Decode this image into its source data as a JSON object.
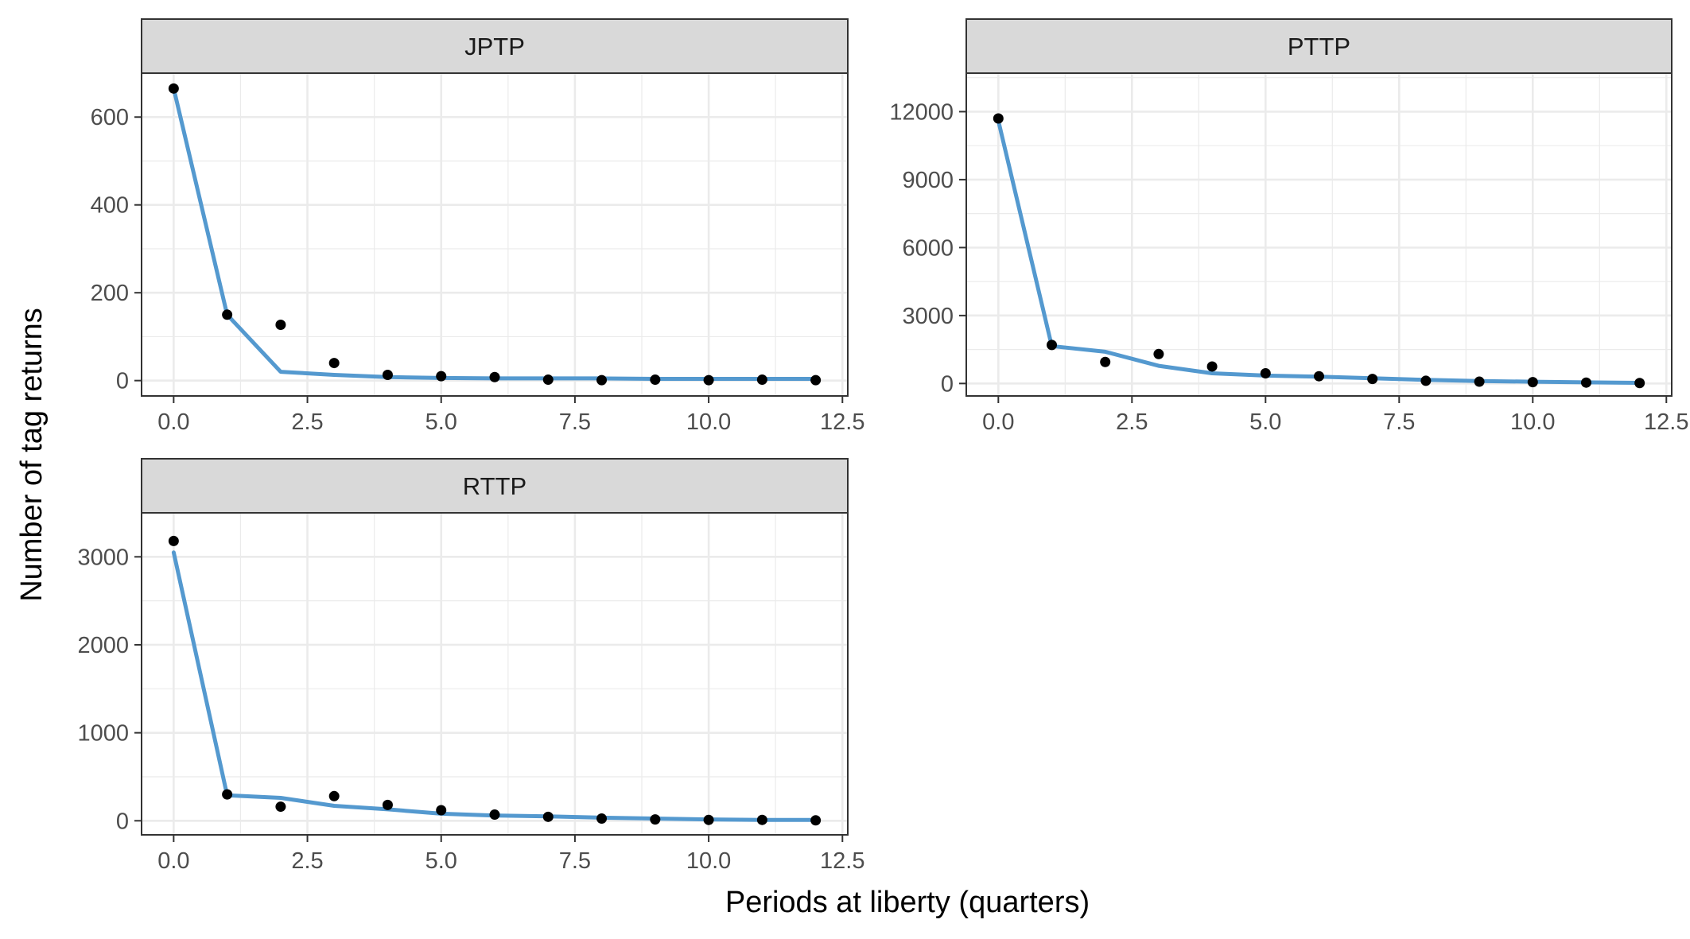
{
  "chart_data": {
    "type": "line",
    "xlabel": "Periods at liberty (quarters)",
    "ylabel": "Number of tag returns",
    "colors": {
      "fit_line": "#5499cf",
      "observed_points": "#000000",
      "strip_fill": "#d9d9d9",
      "grid": "#ebebeb"
    },
    "legend": "none",
    "grid": true,
    "panels": [
      {
        "name": "JPTP",
        "xlim": [
          -0.6,
          12.6
        ],
        "ylim": [
          -35,
          700
        ],
        "xticks": [
          0,
          2.5,
          5,
          7.5,
          10,
          12.5
        ],
        "xtick_labels": [
          "0.0",
          "2.5",
          "5.0",
          "7.5",
          "10.0",
          "12.5"
        ],
        "yticks": [
          0,
          200,
          400,
          600
        ],
        "ytick_labels": [
          "0",
          "200",
          "400",
          "600"
        ],
        "observed": {
          "x": [
            0,
            1,
            2,
            3,
            4,
            5,
            6,
            7,
            8,
            9,
            10,
            11,
            12
          ],
          "y": [
            665,
            150,
            127,
            40,
            13,
            10,
            8,
            2,
            1,
            2,
            1,
            2,
            1
          ]
        },
        "predicted": {
          "x": [
            0,
            1,
            2,
            3,
            4,
            5,
            6,
            7,
            8,
            9,
            10,
            11,
            12
          ],
          "y": [
            665,
            150,
            20,
            13,
            8,
            6,
            5,
            5,
            5,
            4,
            4,
            4,
            4
          ]
        }
      },
      {
        "name": "PTTP",
        "xlim": [
          -0.6,
          12.6
        ],
        "ylim": [
          -550,
          13700
        ],
        "xticks": [
          0,
          2.5,
          5,
          7.5,
          10,
          12.5
        ],
        "xtick_labels": [
          "0.0",
          "2.5",
          "5.0",
          "7.5",
          "10.0",
          "12.5"
        ],
        "yticks": [
          0,
          3000,
          6000,
          9000,
          12000
        ],
        "ytick_labels": [
          "0",
          "3000",
          "6000",
          "9000",
          "12000"
        ],
        "observed": {
          "x": [
            0,
            1,
            2,
            3,
            4,
            5,
            6,
            7,
            8,
            9,
            10,
            11,
            12
          ],
          "y": [
            11700,
            1700,
            950,
            1300,
            750,
            450,
            320,
            200,
            120,
            80,
            60,
            40,
            20
          ]
        },
        "predicted": {
          "x": [
            0,
            1,
            2,
            3,
            4,
            5,
            6,
            7,
            8,
            9,
            10,
            11,
            12
          ],
          "y": [
            11600,
            1650,
            1400,
            780,
            450,
            350,
            300,
            230,
            160,
            110,
            80,
            50,
            30
          ]
        }
      },
      {
        "name": "RTTP",
        "xlim": [
          -0.6,
          12.6
        ],
        "ylim": [
          -160,
          3500
        ],
        "xticks": [
          0,
          2.5,
          5,
          7.5,
          10,
          12.5
        ],
        "xtick_labels": [
          "0.0",
          "2.5",
          "5.0",
          "7.5",
          "10.0",
          "12.5"
        ],
        "yticks": [
          0,
          1000,
          2000,
          3000
        ],
        "ytick_labels": [
          "0",
          "1000",
          "2000",
          "3000"
        ],
        "observed": {
          "x": [
            0,
            1,
            2,
            3,
            4,
            5,
            6,
            7,
            8,
            9,
            10,
            11,
            12
          ],
          "y": [
            3180,
            300,
            160,
            280,
            180,
            120,
            70,
            45,
            25,
            15,
            10,
            10,
            5
          ]
        },
        "predicted": {
          "x": [
            0,
            1,
            2,
            3,
            4,
            5,
            6,
            7,
            8,
            9,
            10,
            11,
            12
          ],
          "y": [
            3050,
            290,
            260,
            170,
            130,
            80,
            60,
            50,
            35,
            25,
            15,
            10,
            10
          ]
        }
      }
    ]
  }
}
